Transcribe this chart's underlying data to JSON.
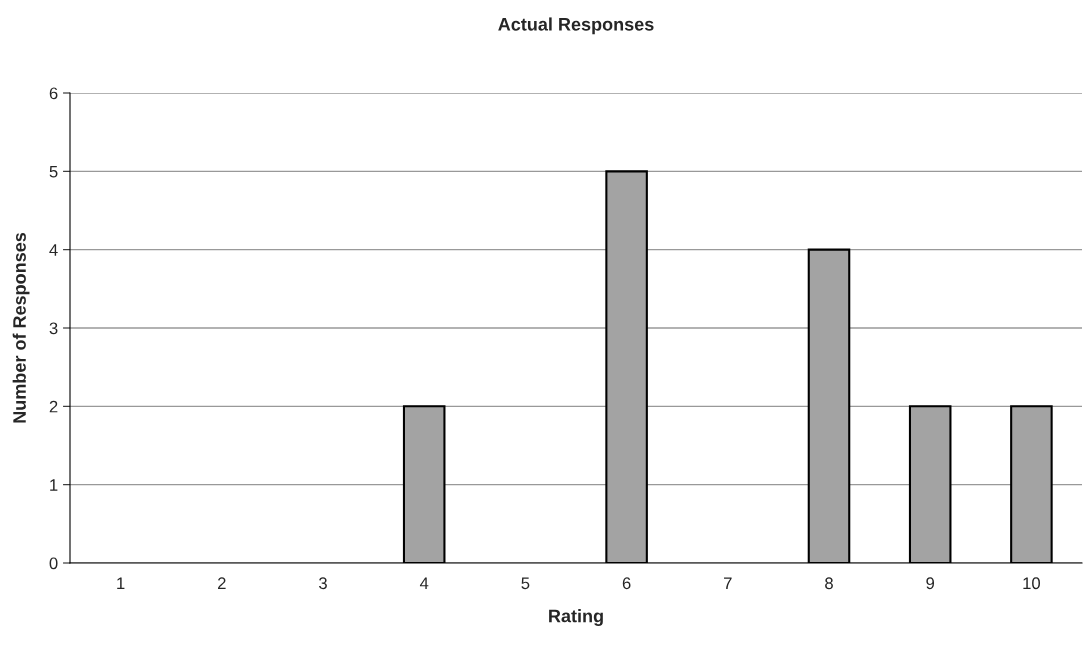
{
  "chart_data": {
    "type": "bar",
    "title": "Actual Responses",
    "xlabel": "Rating",
    "ylabel": "Number of Responses",
    "categories": [
      "1",
      "2",
      "3",
      "4",
      "5",
      "6",
      "7",
      "8",
      "9",
      "10"
    ],
    "values": [
      0,
      0,
      0,
      2,
      0,
      5,
      0,
      4,
      2,
      2
    ],
    "color": "#a3a3a3",
    "ylim": [
      0,
      6
    ],
    "yticks": [
      0,
      1,
      2,
      3,
      4,
      5,
      6
    ],
    "grid": "y"
  }
}
